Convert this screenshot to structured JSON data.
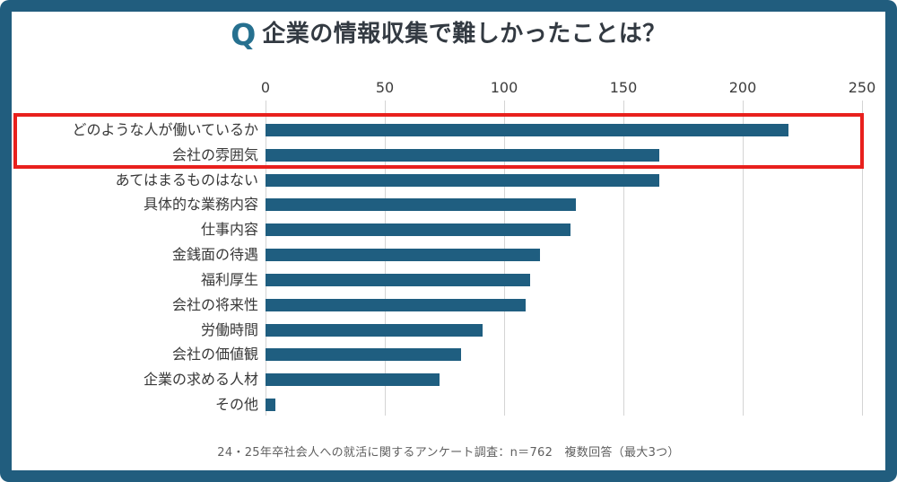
{
  "title": {
    "q_mark": "Q",
    "text": "企業の情報収集で難しかったことは？"
  },
  "footer_note": "24・25年卒社会人への就活に関するアンケート調査：n＝762　複数回答（最大3つ）",
  "colors": {
    "frame_teal": "#215d7e",
    "bar_teal": "#1f5e80",
    "q_mark_teal": "#26708f",
    "title_dark": "#333a42",
    "gridline_gray": "#d4d4d4",
    "highlight_red": "#e8201d"
  },
  "chart_data": {
    "type": "bar",
    "orientation": "horizontal",
    "title": "Q 企業の情報収集で難しかったことは？",
    "xlabel": "",
    "ylabel": "",
    "xlim": [
      0,
      250
    ],
    "xticks": [
      0,
      50,
      100,
      150,
      200,
      250
    ],
    "grid": true,
    "categories": [
      "どのような人が働いているか",
      "会社の雰囲気",
      "あてはまるものはない",
      "具体的な業務内容",
      "仕事内容",
      "金銭面の待遇",
      "福利厚生",
      "会社の将来性",
      "労働時間",
      "会社の価値観",
      "企業の求める人材",
      "その他"
    ],
    "values": [
      219,
      165,
      165,
      130,
      128,
      115,
      111,
      109,
      91,
      82,
      73,
      4
    ],
    "highlight": {
      "highlighted_categories": [
        "どのような人が働いているか",
        "会社の雰囲気"
      ],
      "style": "red outline box around top two rows"
    }
  }
}
